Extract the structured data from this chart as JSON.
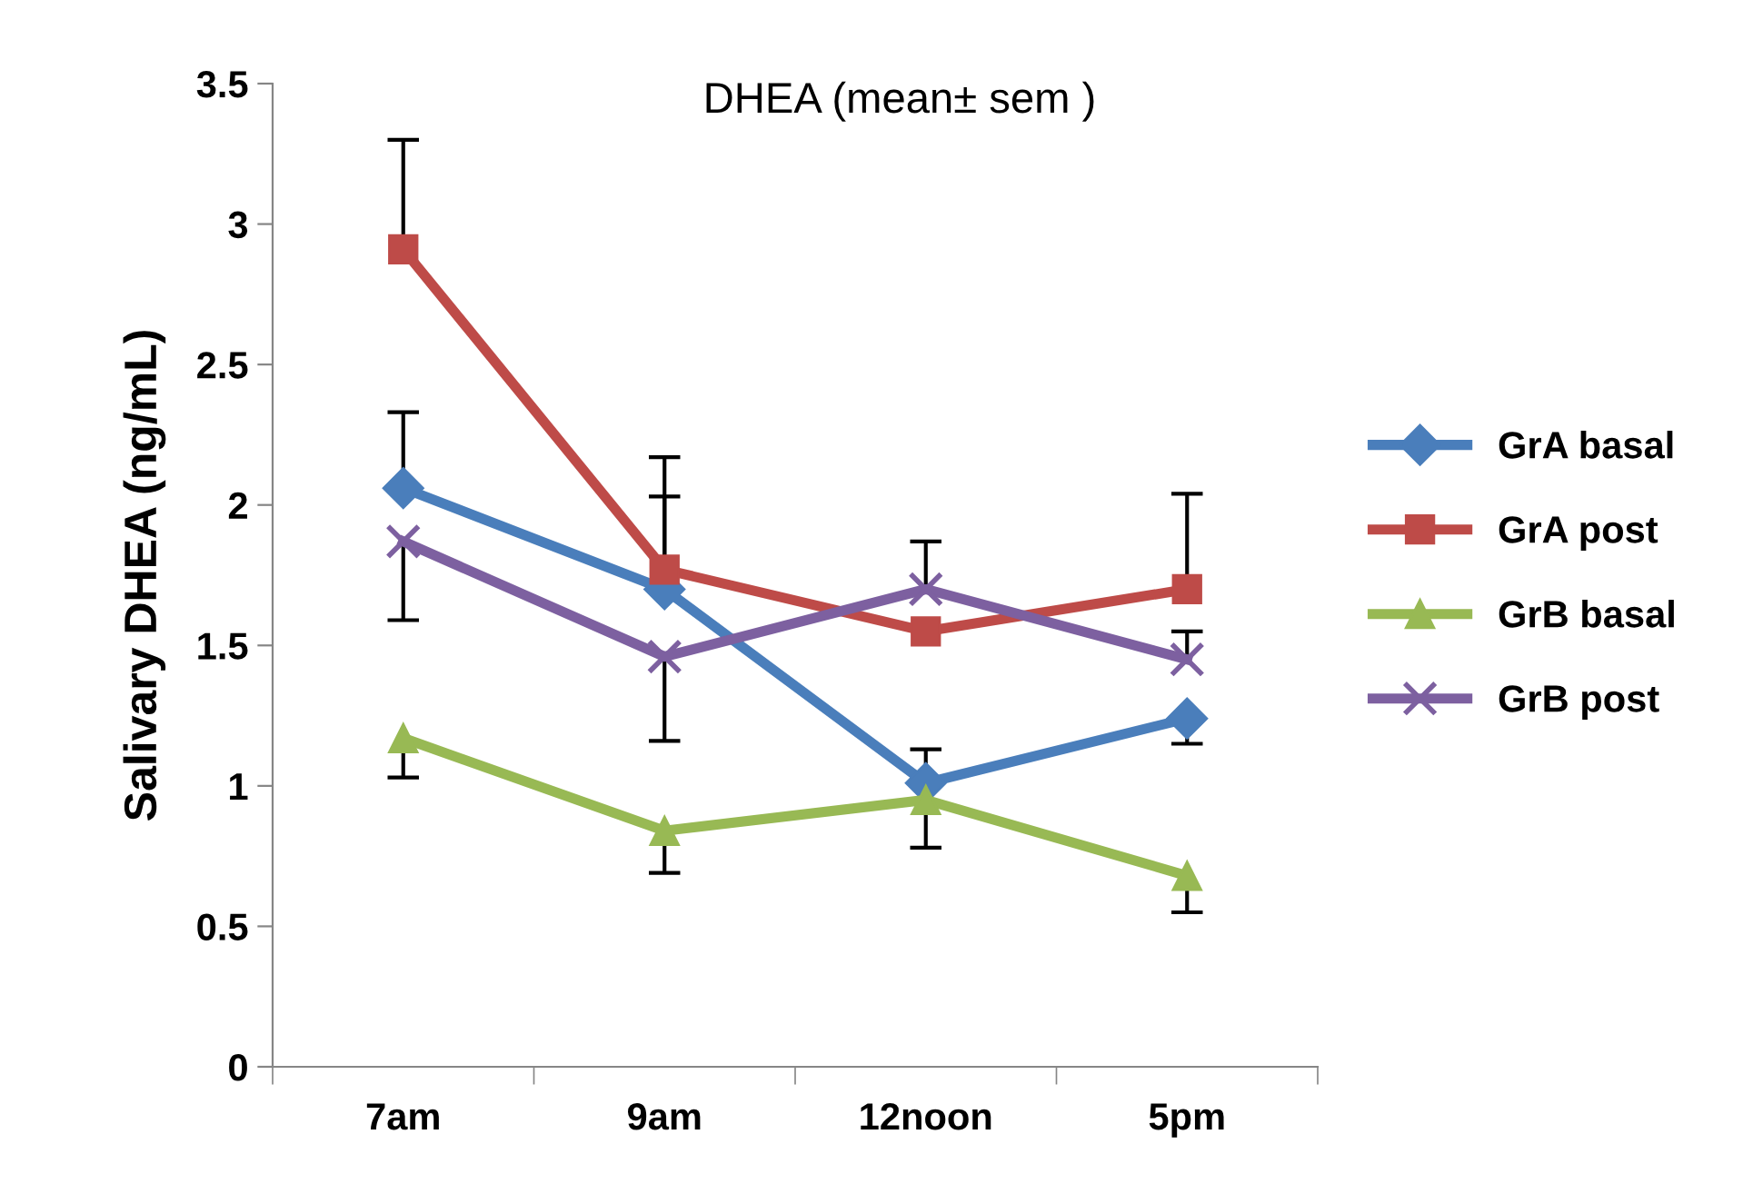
{
  "chart_data": {
    "type": "line",
    "title": "DHEA (mean± sem )",
    "ylabel": "Salivary DHEA (ng/mL)",
    "categories": [
      "7am",
      "9am",
      "12noon",
      "5pm"
    ],
    "ylim": [
      0,
      3.5
    ],
    "yticks": [
      0,
      0.5,
      1,
      1.5,
      2,
      2.5,
      3,
      3.5
    ],
    "grid": false,
    "legend": "right",
    "series": [
      {
        "name": "GrA basal",
        "color": "#4a7ebb",
        "marker": "diamond",
        "values": [
          2.06,
          1.7,
          1.01,
          1.24
        ],
        "errors": [
          [
            2.06,
            2.33
          ],
          [
            1.7,
            2.03
          ],
          [
            1.01,
            1.13
          ],
          [
            1.15,
            1.24
          ]
        ]
      },
      {
        "name": "GrA post",
        "color": "#be4b48",
        "marker": "square",
        "values": [
          2.91,
          1.77,
          1.55,
          1.7
        ],
        "errors": [
          [
            2.91,
            3.3
          ],
          [
            1.77,
            2.17
          ],
          null,
          [
            1.7,
            2.04
          ]
        ]
      },
      {
        "name": "GrB basal",
        "color": "#98b954",
        "marker": "triangle",
        "values": [
          1.17,
          0.84,
          0.95,
          0.68
        ],
        "errors": [
          [
            1.03,
            1.17
          ],
          [
            0.69,
            0.84
          ],
          [
            0.78,
            0.95
          ],
          [
            0.55,
            0.68
          ]
        ]
      },
      {
        "name": "GrB post",
        "color": "#7d60a0",
        "marker": "cross",
        "values": [
          1.87,
          1.46,
          1.7,
          1.45
        ],
        "errors": [
          [
            1.59,
            1.87
          ],
          [
            1.16,
            1.46
          ],
          [
            1.7,
            1.87
          ],
          [
            1.45,
            1.55
          ]
        ]
      }
    ]
  }
}
